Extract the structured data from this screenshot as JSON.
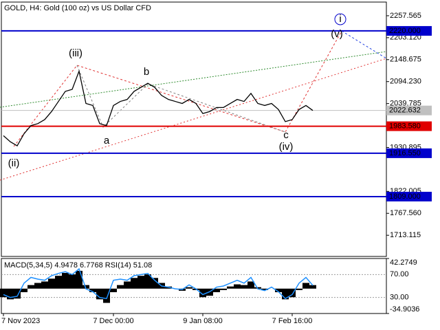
{
  "chart_data": [
    {
      "type": "line",
      "title": "GOLD, H4:  Gold (100 oz) vs US Dollar CFD",
      "categories": [
        "7 Nov 2023",
        null,
        null,
        null,
        null,
        null,
        null,
        null,
        null,
        null,
        null,
        null,
        null,
        null,
        null,
        null,
        "7 Dec 00:00",
        null,
        null,
        null,
        null,
        null,
        null,
        null,
        null,
        null,
        null,
        null,
        null,
        "9 Jan 08:00",
        null,
        null,
        null,
        null,
        null,
        null,
        null,
        null,
        null,
        null,
        null,
        null,
        "7 Feb 16:00",
        null,
        null,
        null
      ],
      "series": [
        {
          "name": "GOLD",
          "color": "#000000",
          "values": [
            1960,
            1945,
            1935,
            1965,
            1985,
            1990,
            2000,
            2020,
            2045,
            2070,
            2075,
            2120,
            2040,
            2035,
            1990,
            1985,
            2035,
            2045,
            2050,
            2070,
            2080,
            2090,
            2080,
            2060,
            2050,
            2045,
            2040,
            2050,
            2040,
            2015,
            2020,
            2030,
            2030,
            2040,
            2050,
            2045,
            2065,
            2040,
            2035,
            2040,
            2025,
            1995,
            2000,
            2025,
            2035,
            2022.632
          ]
        }
      ],
      "ylim": [
        1660.6,
        2291.5
      ],
      "yticks": [
        {
          "value": 2257.565,
          "label": "2257.565"
        },
        {
          "value": 2203.12,
          "label": "2203.120"
        },
        {
          "value": 2148.675,
          "label": "2148.675"
        },
        {
          "value": 2094.23,
          "label": "2094.230"
        },
        {
          "value": 2039.785,
          "label": "2039.785"
        },
        {
          "value": 1930.895,
          "label": "1930.895"
        },
        {
          "value": 1822.005,
          "label": "1822.005"
        },
        {
          "value": 1767.56,
          "label": "1767.560"
        },
        {
          "value": 1713.115,
          "label": "1713.115"
        }
      ],
      "levels": [
        {
          "value": 2220,
          "label": "2220.000",
          "color": "#0000cc"
        },
        {
          "value": 1983.58,
          "label": "1983.580",
          "color": "#e00000"
        },
        {
          "value": 1916.55,
          "label": "1916.550",
          "color": "#0000cc"
        },
        {
          "value": 1809,
          "label": "1809.000",
          "color": "#0000cc"
        },
        {
          "value": 2022.632,
          "label": "2022.632",
          "color": "#c0c0c0"
        }
      ],
      "annotations": [
        {
          "text": "(iii)",
          "color": "#cc0000"
        },
        {
          "text": "(ii)",
          "color": "#cc0000"
        },
        {
          "text": "b",
          "color": "#808080"
        },
        {
          "text": "a",
          "color": "#808080"
        },
        {
          "text": "c",
          "color": "#808080"
        },
        {
          "text": "(iv)",
          "color": "#cc0000"
        },
        {
          "text": "(v)",
          "color": "#cc0000"
        },
        {
          "text": "i",
          "color": "#0000cc"
        }
      ]
    },
    {
      "type": "macd",
      "title": "MACD(5,34,5) 4.9478 6.7768 RSI(14) 51.08",
      "series": [
        {
          "name": "MACD",
          "color": "#000000",
          "values": [
            -12,
            -15,
            -14,
            -5,
            5,
            8,
            10,
            14,
            18,
            22,
            20,
            25,
            5,
            -5,
            -15,
            -20,
            -5,
            5,
            10,
            15,
            18,
            20,
            15,
            8,
            3,
            0,
            -3,
            2,
            -2,
            -12,
            -10,
            -5,
            -2,
            3,
            6,
            5,
            10,
            2,
            -2,
            0,
            -5,
            -15,
            -12,
            -2,
            8,
            4.9478
          ]
        },
        {
          "name": "RSI",
          "color": "#1e90ff",
          "axis": "y2",
          "values": [
            35,
            30,
            32,
            55,
            65,
            62,
            60,
            68,
            72,
            75,
            70,
            80,
            45,
            40,
            30,
            28,
            60,
            62,
            60,
            68,
            70,
            72,
            60,
            50,
            48,
            45,
            44,
            52,
            45,
            35,
            40,
            48,
            50,
            55,
            60,
            55,
            65,
            45,
            42,
            48,
            40,
            28,
            35,
            55,
            65,
            51.08
          ]
        }
      ],
      "ylim": [
        -34.9036,
        42.2749
      ],
      "yticks": [
        {
          "value": 42.2749,
          "label": "42.2749"
        },
        {
          "value": -34.9036,
          "label": "-34.9036"
        }
      ],
      "y2lim": [
        2,
        98
      ],
      "y2ticks": [
        {
          "value": 70,
          "label": "70.00"
        },
        {
          "value": 30,
          "label": "30.00"
        }
      ]
    }
  ]
}
